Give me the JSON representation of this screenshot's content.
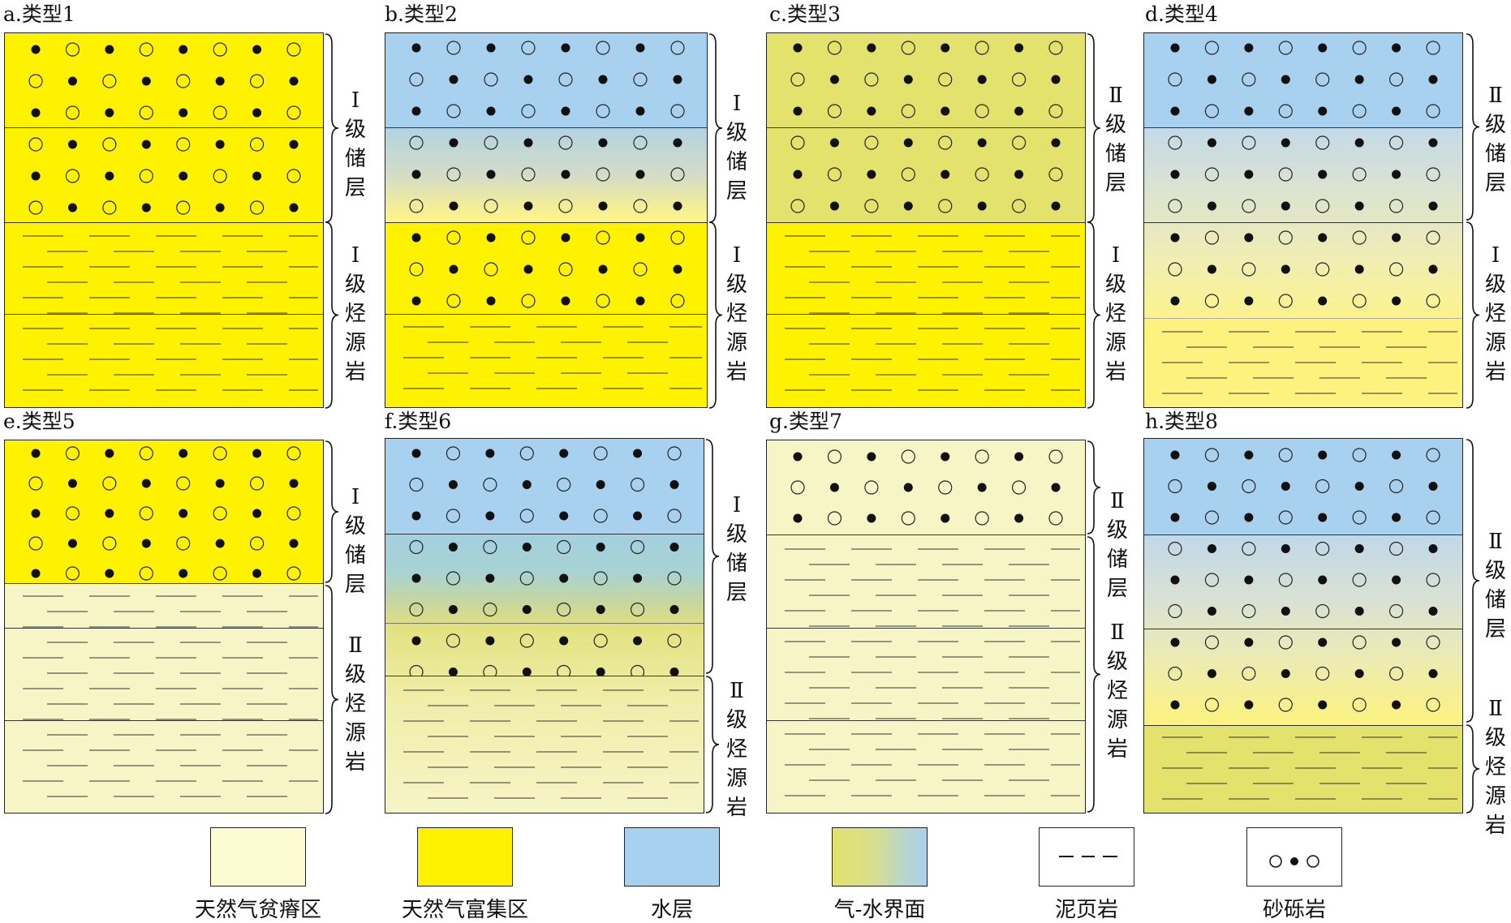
{
  "panels": [
    {
      "key": "a",
      "title": "a.类型1",
      "labels": [
        "Ⅰ级储层",
        "Ⅰ级烃源岩"
      ]
    },
    {
      "key": "b",
      "title": "b.类型2",
      "labels": [
        "Ⅰ级储层",
        "Ⅰ级烃源岩"
      ]
    },
    {
      "key": "c",
      "title": "c.类型3",
      "labels": [
        "Ⅱ级储层",
        "Ⅰ级烃源岩"
      ]
    },
    {
      "key": "d",
      "title": "d.类型4",
      "labels": [
        "Ⅱ级储层",
        "Ⅰ级烃源岩"
      ]
    },
    {
      "key": "e",
      "title": "e.类型5",
      "labels": [
        "Ⅰ级储层",
        "Ⅱ级烃源岩"
      ]
    },
    {
      "key": "f",
      "title": "f.类型6",
      "labels": [
        "Ⅰ级储层",
        "Ⅱ级烃源岩"
      ]
    },
    {
      "key": "g",
      "title": "g.类型7",
      "labels": [
        "Ⅱ级储层",
        "Ⅱ级烃源岩"
      ]
    },
    {
      "key": "h",
      "title": "h.类型8",
      "labels": [
        "Ⅱ级储层",
        "Ⅱ级烃源岩"
      ]
    }
  ],
  "legend": [
    {
      "key": "poor",
      "label": "天然气贫瘠区",
      "color": "#fdfbd2"
    },
    {
      "key": "rich",
      "label": "天然气富集区",
      "color": "#fff200"
    },
    {
      "key": "water",
      "label": "水层",
      "color": "#a8d1ef"
    },
    {
      "key": "interface",
      "label": "气-水界面",
      "color": "gradient"
    },
    {
      "key": "shale",
      "label": "泥页岩",
      "color": "#ffffff"
    },
    {
      "key": "sandstone",
      "label": "砂砾岩",
      "color": "#ffffff"
    }
  ],
  "colors": {
    "poor": "#f7f4c6",
    "rich": "#fff200",
    "water": "#a8d1ef",
    "olive": "#e2e26c"
  }
}
